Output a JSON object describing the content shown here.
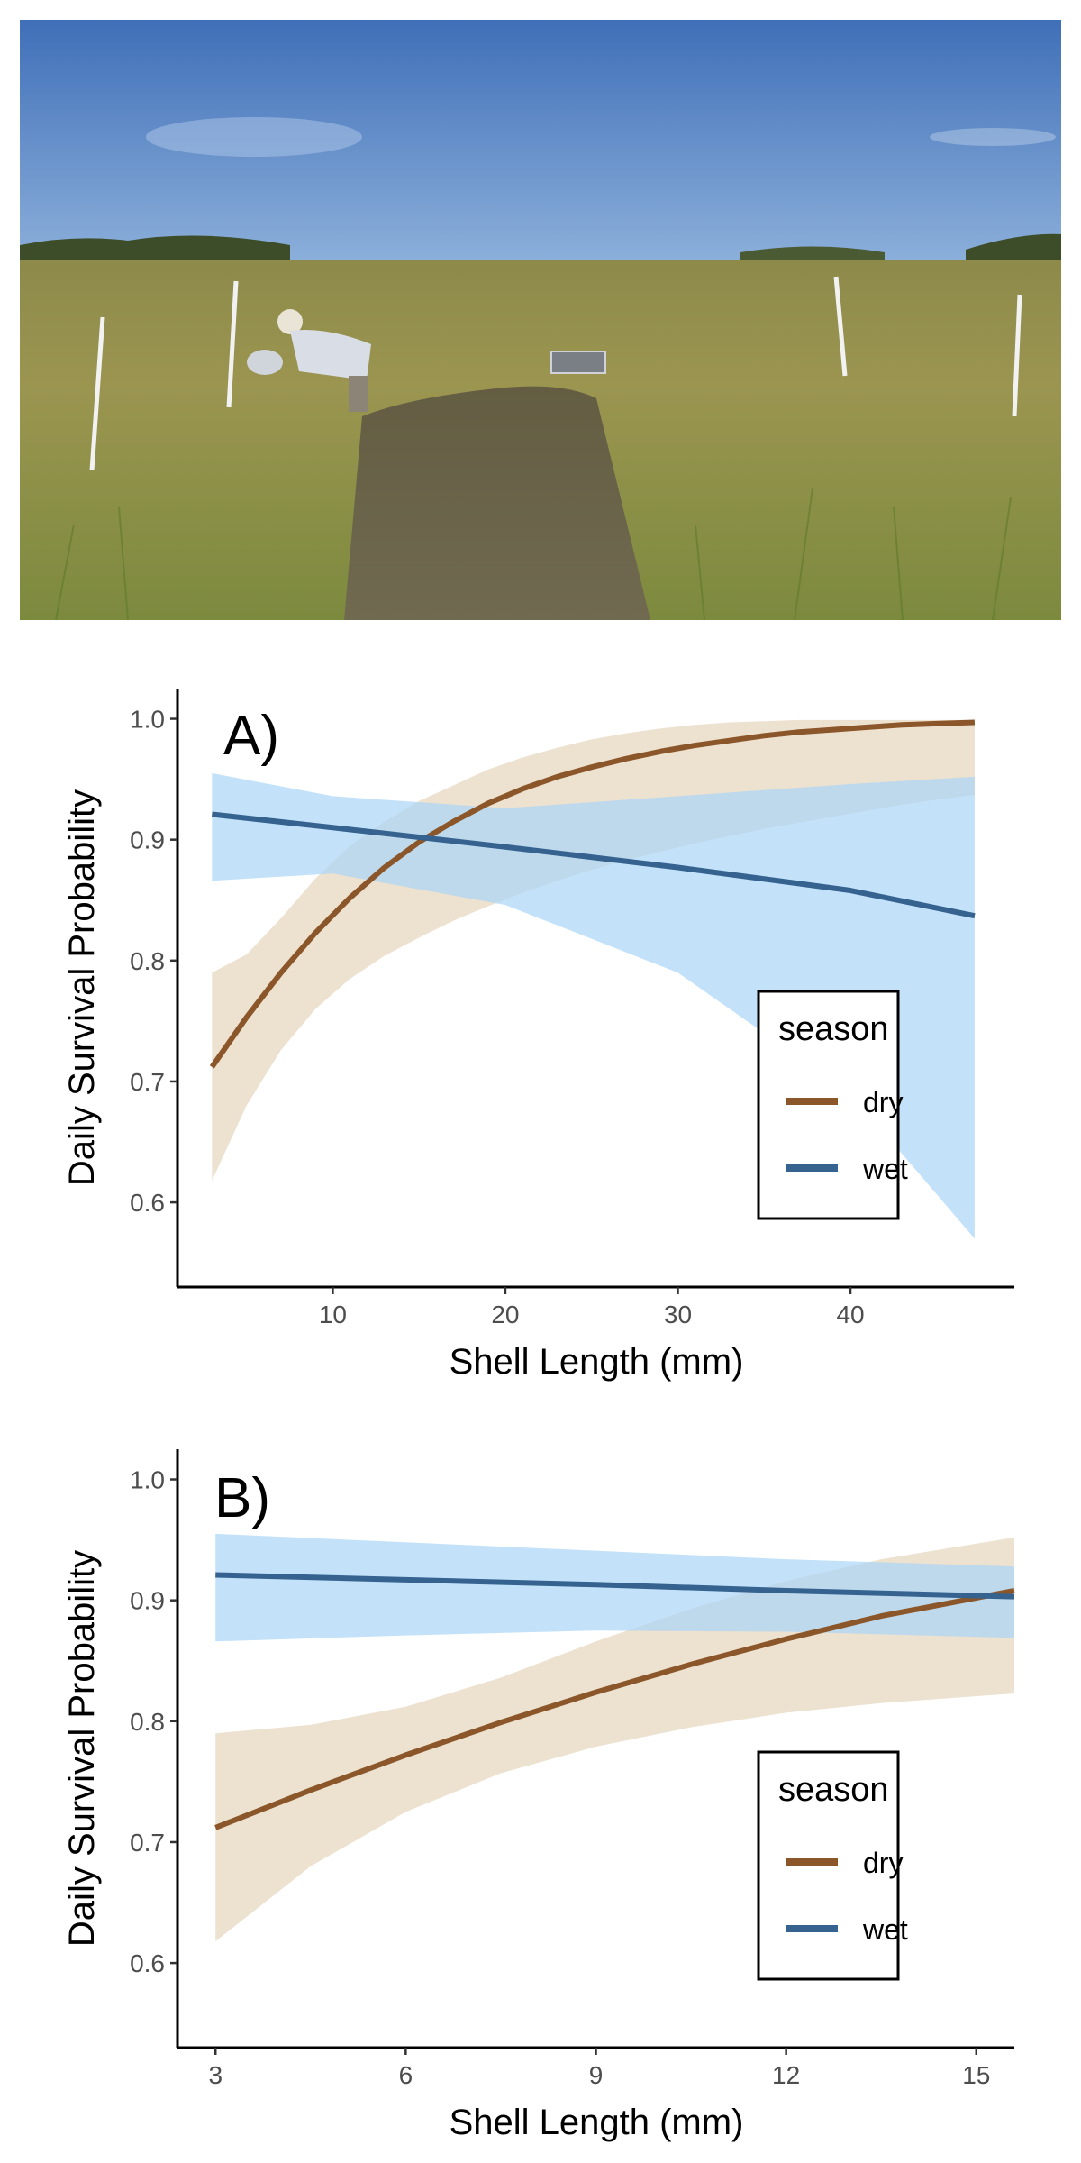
{
  "photo": {
    "description_icon": "field-photo-icon"
  },
  "colors": {
    "dry_line": "#8B572A",
    "dry_band": "#EADCC8",
    "wet_line": "#35628F",
    "wet_band": "#A9D6F8"
  },
  "chart_data": [
    {
      "type": "line",
      "panel_label": "A)",
      "xlabel": "Shell Length (mm)",
      "ylabel": "Daily Survival Probability",
      "xlim": [
        1,
        49.5
      ],
      "ylim": [
        0.53,
        1.025
      ],
      "xticks": [
        10,
        20,
        30,
        40
      ],
      "yticks": [
        0.6,
        0.7,
        0.8,
        0.9,
        1.0
      ],
      "ytick_labels": [
        "0.6",
        "0.7",
        "0.8",
        "0.9",
        "1.0"
      ],
      "xtick_labels": [
        "10",
        "20",
        "30",
        "40"
      ],
      "legend": {
        "title": "season",
        "position": "right-middle",
        "entries": [
          "dry",
          "wet"
        ]
      },
      "series": [
        {
          "name": "dry",
          "x": [
            3,
            5,
            7,
            9,
            11,
            13,
            15,
            17,
            19,
            21,
            23,
            25,
            27,
            29,
            31,
            33,
            35,
            37,
            39,
            41,
            43,
            45,
            47.2
          ],
          "y": [
            0.712,
            0.753,
            0.79,
            0.823,
            0.852,
            0.877,
            0.898,
            0.915,
            0.93,
            0.942,
            0.952,
            0.96,
            0.967,
            0.973,
            0.978,
            0.982,
            0.986,
            0.989,
            0.991,
            0.993,
            0.995,
            0.996,
            0.997
          ],
          "lower": [
            0.618,
            0.68,
            0.726,
            0.76,
            0.785,
            0.804,
            0.819,
            0.833,
            0.845,
            0.856,
            0.866,
            0.875,
            0.883,
            0.89,
            0.897,
            0.903,
            0.909,
            0.914,
            0.919,
            0.924,
            0.929,
            0.933,
            0.937
          ],
          "upper": [
            0.79,
            0.805,
            0.835,
            0.868,
            0.895,
            0.915,
            0.932,
            0.945,
            0.958,
            0.968,
            0.976,
            0.983,
            0.988,
            0.992,
            0.995,
            0.997,
            0.998,
            0.999,
            0.999,
            0.999,
            0.999,
            0.999,
            0.999
          ]
        },
        {
          "name": "wet",
          "x": [
            3,
            10,
            20,
            30,
            40,
            47.2
          ],
          "y": [
            0.921,
            0.91,
            0.894,
            0.877,
            0.858,
            0.837
          ],
          "lower": [
            0.866,
            0.872,
            0.846,
            0.79,
            0.69,
            0.57
          ],
          "upper": [
            0.955,
            0.936,
            0.926,
            0.936,
            0.946,
            0.952
          ]
        }
      ]
    },
    {
      "type": "line",
      "panel_label": "B)",
      "xlabel": "Shell Length (mm)",
      "ylabel": "Daily Survival Probability",
      "xlim": [
        2.4,
        15.6
      ],
      "ylim": [
        0.53,
        1.025
      ],
      "xticks": [
        3,
        6,
        9,
        12,
        15
      ],
      "yticks": [
        0.6,
        0.7,
        0.8,
        0.9,
        1.0
      ],
      "ytick_labels": [
        "0.6",
        "0.7",
        "0.8",
        "0.9",
        "1.0"
      ],
      "xtick_labels": [
        "3",
        "6",
        "9",
        "12",
        "15"
      ],
      "legend": {
        "title": "season",
        "position": "right-middle",
        "entries": [
          "dry",
          "wet"
        ]
      },
      "series": [
        {
          "name": "dry",
          "x": [
            3,
            4.5,
            6,
            7.5,
            9,
            10.5,
            12,
            13.5,
            15.6
          ],
          "y": [
            0.712,
            0.743,
            0.772,
            0.799,
            0.824,
            0.847,
            0.868,
            0.887,
            0.908
          ],
          "lower": [
            0.618,
            0.68,
            0.725,
            0.757,
            0.779,
            0.795,
            0.807,
            0.815,
            0.823
          ],
          "upper": [
            0.79,
            0.797,
            0.812,
            0.836,
            0.866,
            0.893,
            0.916,
            0.934,
            0.952
          ]
        },
        {
          "name": "wet",
          "x": [
            3,
            6,
            9,
            12,
            15.6
          ],
          "y": [
            0.921,
            0.917,
            0.913,
            0.908,
            0.903
          ],
          "lower": [
            0.866,
            0.871,
            0.875,
            0.874,
            0.869
          ],
          "upper": [
            0.955,
            0.948,
            0.941,
            0.934,
            0.928
          ]
        }
      ]
    }
  ]
}
